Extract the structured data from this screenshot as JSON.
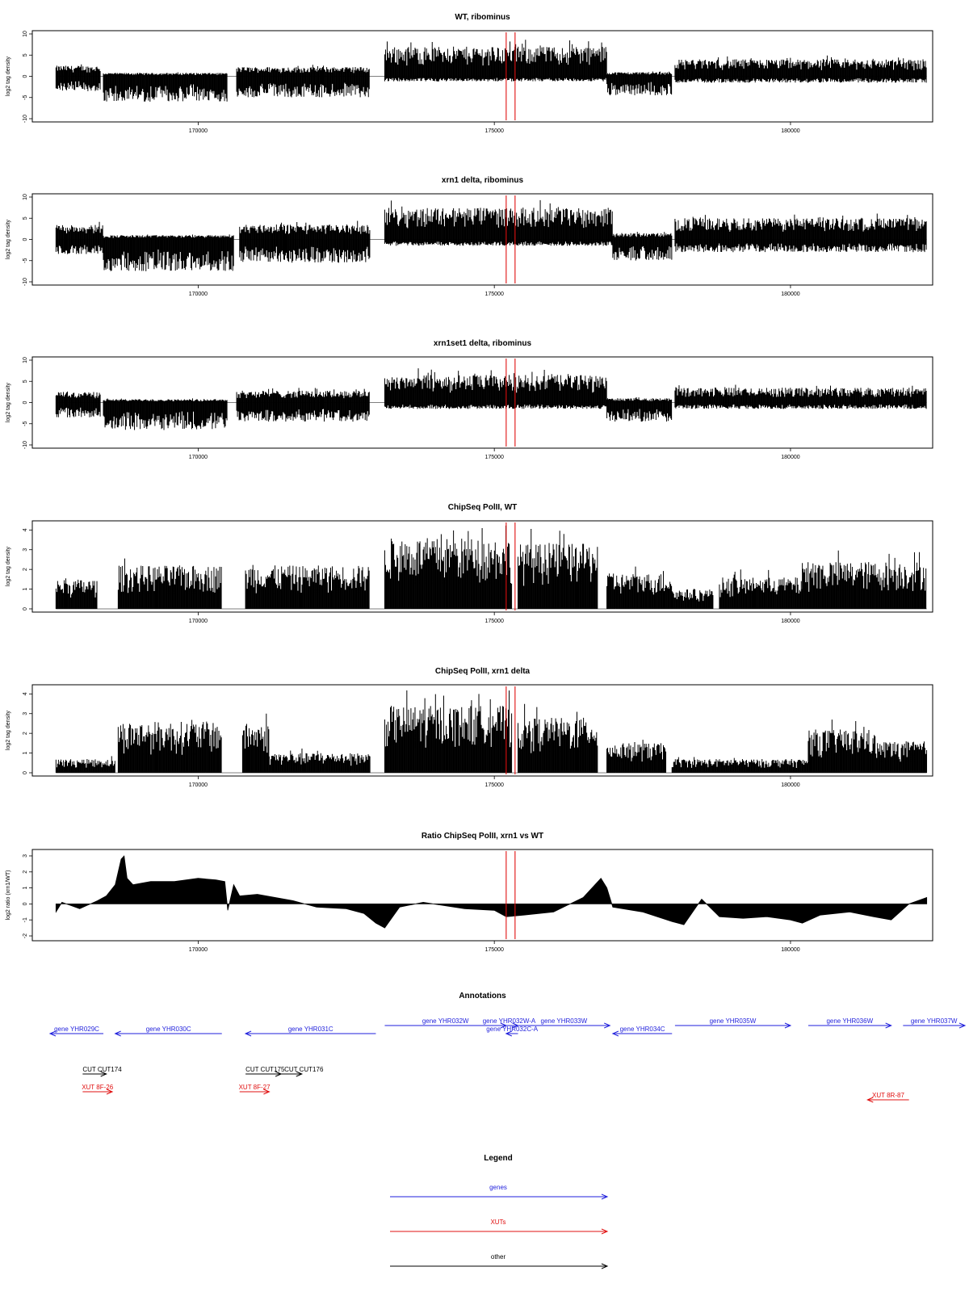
{
  "colors": {
    "gene": "#1f1fdc",
    "xut": "#e01010",
    "other": "#000000",
    "marker": "#e01010",
    "bars": "#000000"
  },
  "chart_data": [
    {
      "type": "bar",
      "title": "WT, ribominus",
      "ylabel": "log2 tag density",
      "ylim": [
        -10,
        10
      ],
      "yticks": [
        "-10",
        "-5",
        "0",
        "5",
        "10"
      ],
      "yticks_values": [
        -10,
        -5,
        0,
        5,
        10
      ],
      "xlim": [
        167200,
        182400
      ],
      "xticks": [
        "170000",
        "175000",
        "180000"
      ],
      "xticks_values": [
        170000,
        175000,
        180000
      ],
      "markers": [
        175200,
        175350
      ],
      "segments": [
        {
          "start": 167600,
          "end": 168350,
          "pos": 2.5,
          "neg": 3.5
        },
        {
          "start": 168400,
          "end": 170500,
          "pos": 0.8,
          "neg": 6.0
        },
        {
          "start": 170650,
          "end": 172900,
          "pos": 2.2,
          "neg": 5.0
        },
        {
          "start": 173150,
          "end": 176900,
          "pos": 7.0,
          "neg": 1.2
        },
        {
          "start": 176900,
          "end": 178000,
          "pos": 1.0,
          "neg": 4.5
        },
        {
          "start": 178050,
          "end": 182300,
          "pos": 4.0,
          "neg": 1.5
        }
      ]
    },
    {
      "type": "bar",
      "title": "xrn1 delta, ribominus",
      "ylabel": "log2 tag density",
      "ylim": [
        -10,
        10
      ],
      "yticks": [
        "-10",
        "-5",
        "0",
        "5",
        "10"
      ],
      "yticks_values": [
        -10,
        -5,
        0,
        5,
        10
      ],
      "xlim": [
        167200,
        182400
      ],
      "xticks": [
        "170000",
        "175000",
        "180000"
      ],
      "xticks_values": [
        170000,
        175000,
        180000
      ],
      "markers": [
        175200,
        175350
      ],
      "segments": [
        {
          "start": 167600,
          "end": 168400,
          "pos": 3.5,
          "neg": 3.5
        },
        {
          "start": 168400,
          "end": 170600,
          "pos": 1.0,
          "neg": 7.5
        },
        {
          "start": 170700,
          "end": 172900,
          "pos": 3.5,
          "neg": 5.5
        },
        {
          "start": 173150,
          "end": 177000,
          "pos": 7.5,
          "neg": 1.5
        },
        {
          "start": 177000,
          "end": 178000,
          "pos": 1.5,
          "neg": 5.0
        },
        {
          "start": 178050,
          "end": 182300,
          "pos": 5.0,
          "neg": 3.0
        }
      ]
    },
    {
      "type": "bar",
      "title": "xrn1set1 delta, ribominus",
      "ylabel": "log2 tag density",
      "ylim": [
        -10,
        10
      ],
      "yticks": [
        "-10",
        "-5",
        "0",
        "5",
        "10"
      ],
      "yticks_values": [
        -10,
        -5,
        0,
        5,
        10
      ],
      "xlim": [
        167200,
        182400
      ],
      "xticks": [
        "170000",
        "175000",
        "180000"
      ],
      "xticks_values": [
        170000,
        175000,
        180000
      ],
      "markers": [
        175200,
        175350
      ],
      "segments": [
        {
          "start": 167600,
          "end": 168350,
          "pos": 2.5,
          "neg": 3.5
        },
        {
          "start": 168400,
          "end": 170500,
          "pos": 0.8,
          "neg": 6.5
        },
        {
          "start": 170650,
          "end": 172900,
          "pos": 2.8,
          "neg": 4.5
        },
        {
          "start": 173150,
          "end": 176900,
          "pos": 6.5,
          "neg": 1.5
        },
        {
          "start": 176900,
          "end": 178000,
          "pos": 1.0,
          "neg": 4.5
        },
        {
          "start": 178050,
          "end": 182300,
          "pos": 3.5,
          "neg": 1.5
        }
      ]
    },
    {
      "type": "bar",
      "title": "ChipSeq PolII, WT",
      "ylabel": "log2 tag density",
      "ylim": [
        0,
        4.3
      ],
      "yticks": [
        "0",
        "1",
        "2",
        "3",
        "4"
      ],
      "yticks_values": [
        0,
        1,
        2,
        3,
        4
      ],
      "xlim": [
        167200,
        182400
      ],
      "xticks": [
        "170000",
        "175000",
        "180000"
      ],
      "xticks_values": [
        170000,
        175000,
        180000
      ],
      "markers": [
        175200,
        175350
      ],
      "segments": [
        {
          "start": 167600,
          "end": 168300,
          "pos": 1.5,
          "neg": 0
        },
        {
          "start": 168650,
          "end": 170400,
          "pos": 2.2,
          "neg": 0
        },
        {
          "start": 170800,
          "end": 172900,
          "pos": 2.2,
          "neg": 0
        },
        {
          "start": 173150,
          "end": 175300,
          "pos": 3.6,
          "neg": 0
        },
        {
          "start": 175400,
          "end": 176750,
          "pos": 3.3,
          "neg": 0
        },
        {
          "start": 176900,
          "end": 178000,
          "pos": 1.8,
          "neg": 0
        },
        {
          "start": 178000,
          "end": 178700,
          "pos": 1.0,
          "neg": 0
        },
        {
          "start": 178800,
          "end": 180200,
          "pos": 1.6,
          "neg": 0
        },
        {
          "start": 180200,
          "end": 182300,
          "pos": 2.4,
          "neg": 0
        }
      ]
    },
    {
      "type": "bar",
      "title": "ChipSeq PolII, xrn1 delta",
      "ylabel": "log2 tag density",
      "ylim": [
        0,
        4.3
      ],
      "yticks": [
        "0",
        "1",
        "2",
        "3",
        "4"
      ],
      "yticks_values": [
        0,
        1,
        2,
        3,
        4
      ],
      "xlim": [
        167200,
        182400
      ],
      "xticks": [
        "170000",
        "175000",
        "180000"
      ],
      "xticks_values": [
        170000,
        175000,
        180000
      ],
      "markers": [
        175200,
        175350
      ],
      "segments": [
        {
          "start": 167600,
          "end": 168600,
          "pos": 0.7,
          "neg": 0
        },
        {
          "start": 168650,
          "end": 170400,
          "pos": 2.6,
          "neg": 0
        },
        {
          "start": 170750,
          "end": 171200,
          "pos": 2.5,
          "neg": 0
        },
        {
          "start": 171200,
          "end": 172900,
          "pos": 1.0,
          "neg": 0
        },
        {
          "start": 173150,
          "end": 175300,
          "pos": 3.4,
          "neg": 0
        },
        {
          "start": 175400,
          "end": 176750,
          "pos": 2.8,
          "neg": 0
        },
        {
          "start": 176900,
          "end": 177900,
          "pos": 1.5,
          "neg": 0
        },
        {
          "start": 178000,
          "end": 180300,
          "pos": 0.7,
          "neg": 0
        },
        {
          "start": 180300,
          "end": 181400,
          "pos": 2.2,
          "neg": 0
        },
        {
          "start": 181400,
          "end": 182300,
          "pos": 1.6,
          "neg": 0
        }
      ]
    },
    {
      "type": "area",
      "title": "Ratio ChipSeq PolII, xrn1 vs WT",
      "ylabel": "log2 ratio (xrn1/WT)",
      "ylim": [
        -2.1,
        3.2
      ],
      "yticks": [
        "-2",
        "-1",
        "0",
        "1",
        "2",
        "3"
      ],
      "yticks_values": [
        -2,
        -1,
        0,
        1,
        2,
        3
      ],
      "xlim": [
        167200,
        182400
      ],
      "xticks": [
        "170000",
        "175000",
        "180000"
      ],
      "xticks_values": [
        170000,
        175000,
        180000
      ],
      "markers": [
        175200,
        175350
      ],
      "x": [
        167600,
        167700,
        168000,
        168300,
        168450,
        168600,
        168700,
        168750,
        168800,
        168900,
        169200,
        169600,
        170000,
        170300,
        170450,
        170500,
        170600,
        170700,
        171000,
        171600,
        172000,
        172500,
        172800,
        173000,
        173150,
        173400,
        173800,
        174500,
        175000,
        175200,
        175500,
        176000,
        176500,
        176800,
        176900,
        177000,
        177500,
        178000,
        178200,
        178500,
        178800,
        179200,
        179600,
        180000,
        180200,
        180500,
        181000,
        181400,
        181700,
        182000,
        182300
      ],
      "y": [
        -0.5,
        0.1,
        -0.3,
        0.2,
        0.5,
        1.2,
        2.8,
        3.0,
        1.6,
        1.2,
        1.4,
        1.4,
        1.6,
        1.5,
        1.4,
        -0.4,
        1.2,
        0.5,
        0.6,
        0.2,
        -0.2,
        -0.3,
        -0.6,
        -1.2,
        -1.5,
        -0.2,
        0.1,
        -0.3,
        -0.4,
        -0.8,
        -0.7,
        -0.5,
        0.4,
        1.6,
        1.0,
        -0.2,
        -0.5,
        -1.1,
        -1.3,
        0.3,
        -0.8,
        -0.9,
        -0.8,
        -1.0,
        -1.2,
        -0.7,
        -0.5,
        -0.8,
        -1.0,
        0.0,
        0.4
      ]
    }
  ],
  "annotations": {
    "title": "Annotations",
    "genes": [
      {
        "label": "gene YHR029C",
        "start": 167500,
        "end": 168400,
        "dir": "left",
        "row": 1
      },
      {
        "label": "gene YHR030C",
        "start": 168600,
        "end": 170400,
        "dir": "left",
        "row": 1
      },
      {
        "label": "gene YHR031C",
        "start": 170800,
        "end": 173000,
        "dir": "left",
        "row": 1
      },
      {
        "label": "gene YHR032W",
        "start": 173150,
        "end": 175200,
        "dir": "right",
        "row": 0
      },
      {
        "label": "gene YHR032W-A",
        "start": 175100,
        "end": 175400,
        "dir": "right",
        "row": 0
      },
      {
        "label": "gene YHR033W",
        "start": 175400,
        "end": 176950,
        "dir": "right",
        "row": 0
      },
      {
        "label": "gene YHR032C-A",
        "start": 175200,
        "end": 175400,
        "dir": "left",
        "row": 1
      },
      {
        "label": "gene YHR034C",
        "start": 177000,
        "end": 178000,
        "dir": "left",
        "row": 1
      },
      {
        "label": "gene YHR035W",
        "start": 178050,
        "end": 180000,
        "dir": "right",
        "row": 0
      },
      {
        "label": "gene YHR036W",
        "start": 180300,
        "end": 181700,
        "dir": "right",
        "row": 0
      },
      {
        "label": "gene YHR037W",
        "start": 181900,
        "end": 183500,
        "dir": "right",
        "row": 0
      }
    ],
    "others": [
      {
        "label": "CUT CUT174",
        "start": 168050,
        "end": 168450,
        "dir": "right"
      },
      {
        "label": "CUT CUT175",
        "start": 170800,
        "end": 171400,
        "dir": "right"
      },
      {
        "label": "CUT CUT176",
        "start": 171400,
        "end": 171750,
        "dir": "right"
      }
    ],
    "xuts": [
      {
        "label": "XUT 8F-26",
        "start": 168050,
        "end": 168550,
        "dir": "right"
      },
      {
        "label": "XUT 8F-27",
        "start": 170700,
        "end": 171200,
        "dir": "right"
      },
      {
        "label": "XUT 8R-87",
        "start": 181300,
        "end": 182000,
        "dir": "left"
      }
    ]
  },
  "legend": {
    "title": "Legend",
    "items": [
      {
        "label": "genes",
        "kind": "gene"
      },
      {
        "label": "XUTs",
        "kind": "xut"
      },
      {
        "label": "other",
        "kind": "other"
      }
    ]
  }
}
